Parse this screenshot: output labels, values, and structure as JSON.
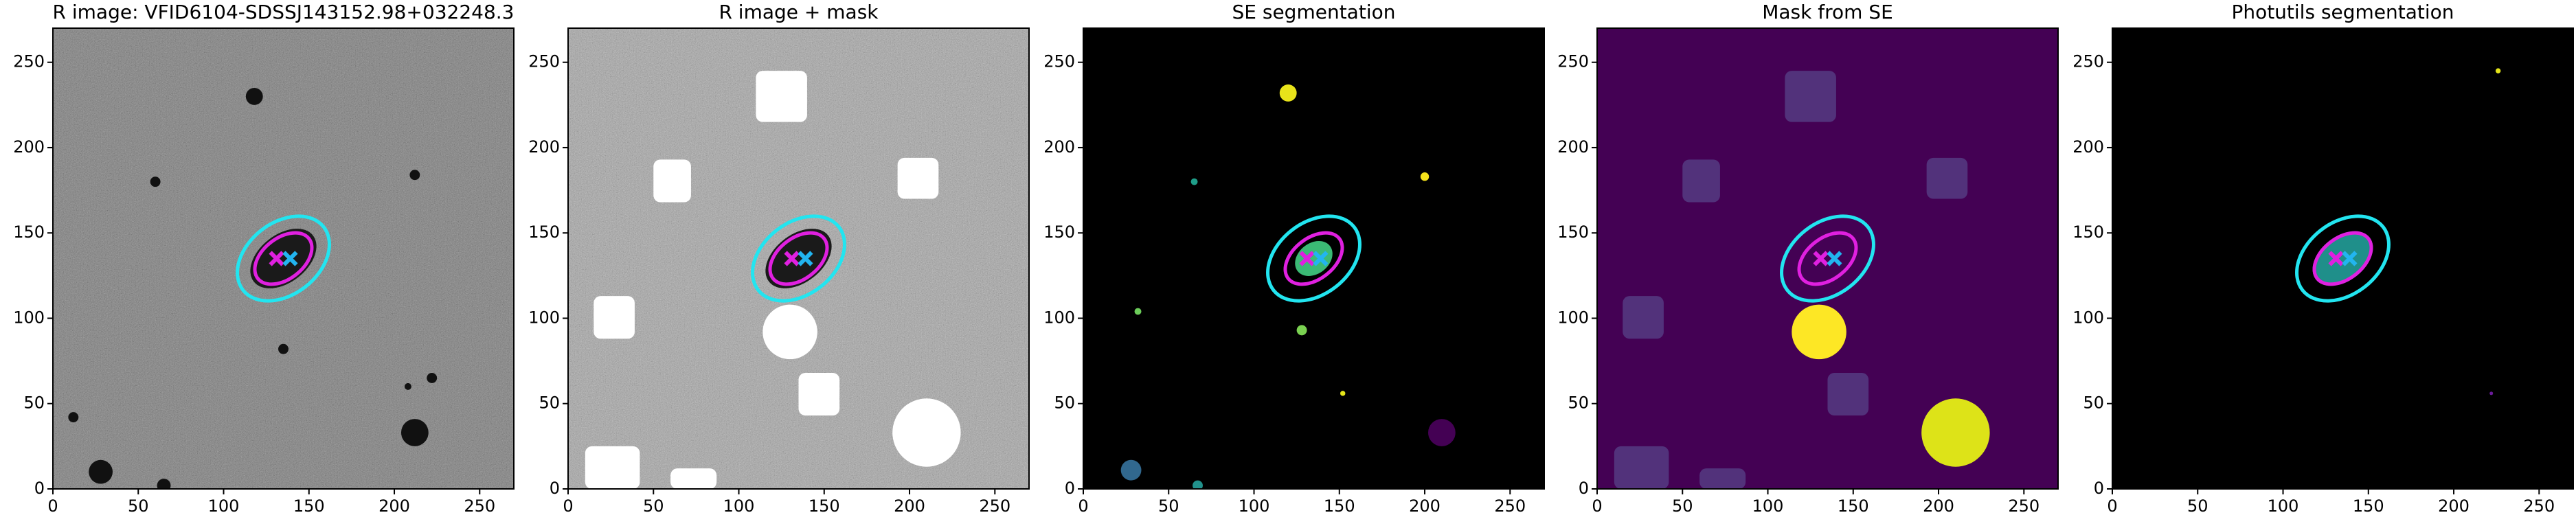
{
  "chart_data": [
    {
      "type": "image",
      "title": "R image: VFID6104-SDSSJ143152.98+032248.3",
      "background": "#555555",
      "noise": true,
      "xlim": [
        0,
        270
      ],
      "ylim": [
        0,
        270
      ],
      "xticks": [
        0,
        50,
        100,
        150,
        200,
        250
      ],
      "yticks": [
        0,
        50,
        100,
        150,
        200,
        250
      ]
    },
    {
      "type": "image",
      "title": "R image + mask",
      "background": "#9a9a9a",
      "noise": true,
      "xlim": [
        0,
        270
      ],
      "ylim": [
        0,
        270
      ],
      "xticks": [
        0,
        50,
        100,
        150,
        200,
        250
      ],
      "yticks": [
        0,
        50,
        100,
        150,
        200,
        250
      ]
    },
    {
      "type": "image",
      "title": "SE segmentation",
      "background": "#000000",
      "noise": false,
      "xlim": [
        0,
        270
      ],
      "ylim": [
        0,
        270
      ],
      "xticks": [
        0,
        50,
        100,
        150,
        200,
        250
      ],
      "yticks": [
        0,
        50,
        100,
        150,
        200,
        250
      ]
    },
    {
      "type": "image",
      "title": "Mask from SE",
      "background": "#440154",
      "noise": false,
      "xlim": [
        0,
        270
      ],
      "ylim": [
        0,
        270
      ],
      "xticks": [
        0,
        50,
        100,
        150,
        200,
        250
      ],
      "yticks": [
        0,
        50,
        100,
        150,
        200,
        250
      ]
    },
    {
      "type": "image",
      "title": "Photutils segmentation",
      "background": "#000000",
      "noise": false,
      "xlim": [
        0,
        270
      ],
      "ylim": [
        0,
        270
      ],
      "xticks": [
        0,
        50,
        100,
        150,
        200,
        250
      ],
      "yticks": [
        0,
        50,
        100,
        150,
        200,
        250
      ]
    }
  ]
}
